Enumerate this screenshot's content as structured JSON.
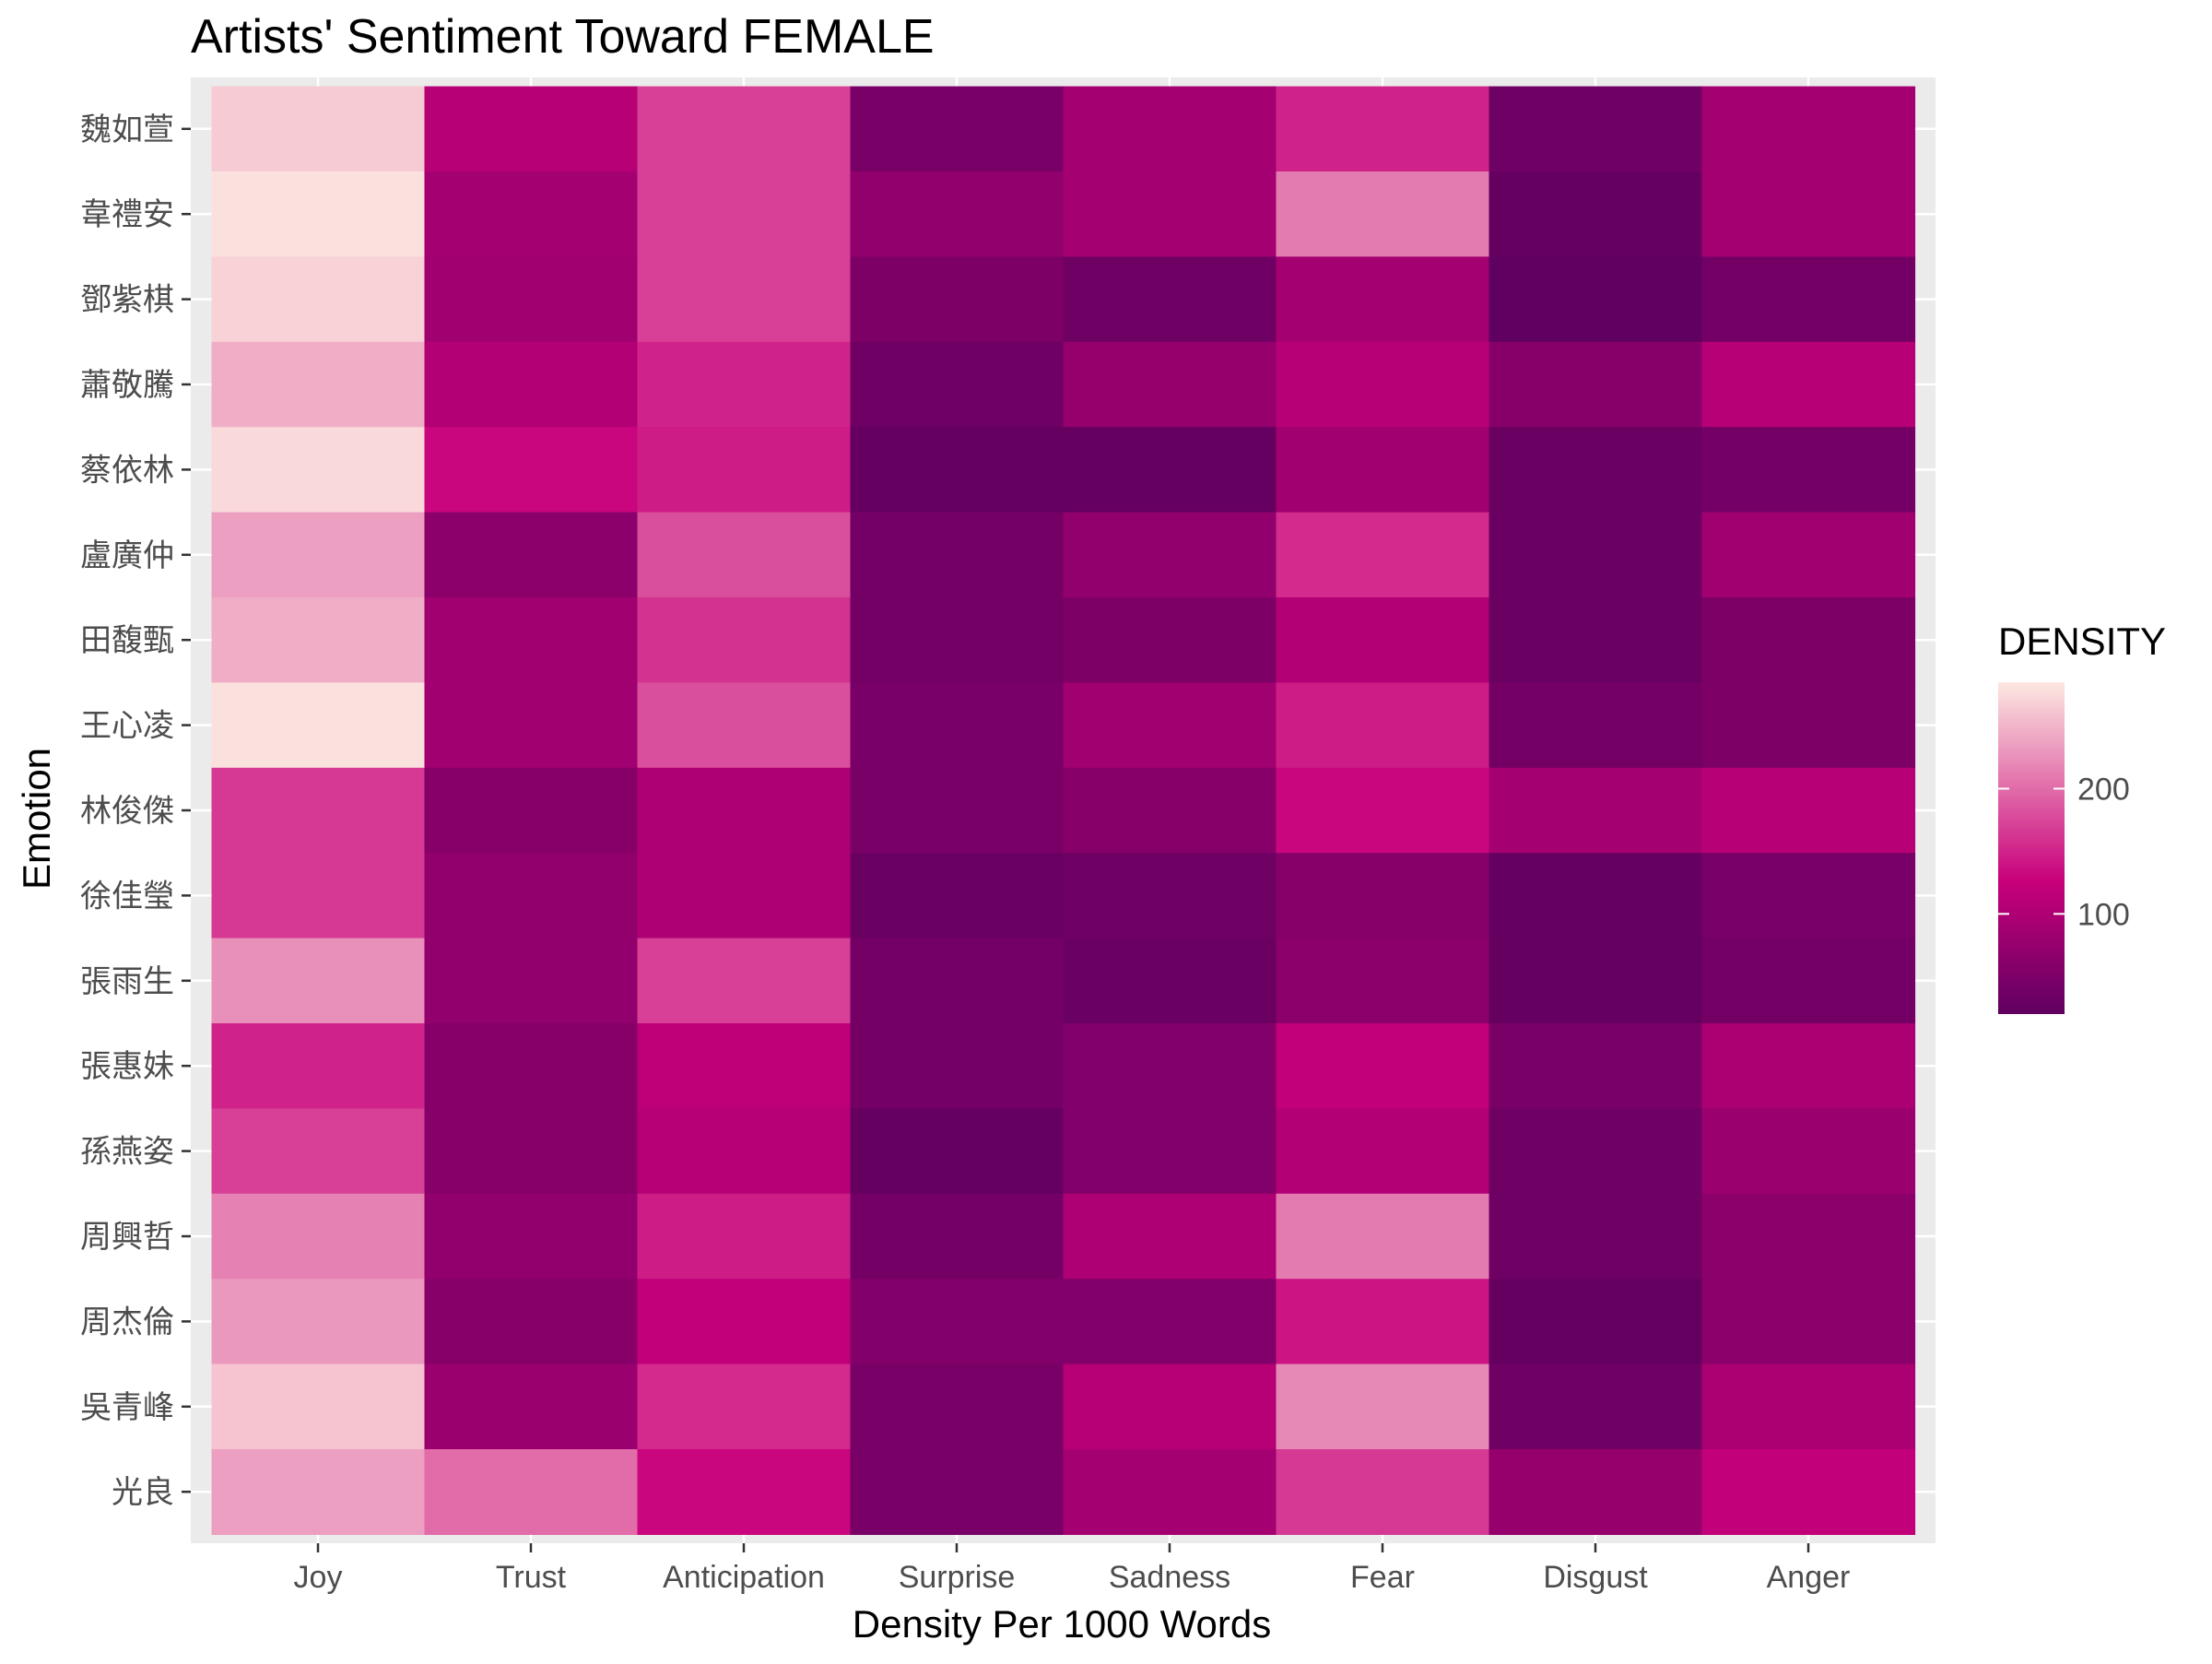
{
  "chart_data": {
    "type": "heatmap",
    "title": "Artists' Sentiment Toward FEMALE",
    "xlabel": "Density Per 1000 Words",
    "ylabel": "Emotion",
    "x_categories": [
      "Joy",
      "Trust",
      "Anticipation",
      "Surprise",
      "Sadness",
      "Fear",
      "Disgust",
      "Anger"
    ],
    "y_categories": [
      "魏如萱",
      "韋禮安",
      "鄧紫棋",
      "蕭敬騰",
      "蔡依林",
      "盧廣仲",
      "田馥甄",
      "王心凌",
      "林俊傑",
      "徐佳瑩",
      "張雨生",
      "張惠妹",
      "孫燕姿",
      "周興哲",
      "周杰倫",
      "吳青峰",
      "光良"
    ],
    "values": [
      [
        265,
        110,
        170,
        45,
        90,
        150,
        35,
        90
      ],
      [
        280,
        90,
        170,
        70,
        90,
        210,
        25,
        90
      ],
      [
        270,
        85,
        170,
        50,
        35,
        90,
        20,
        40
      ],
      [
        245,
        105,
        150,
        35,
        75,
        110,
        60,
        110
      ],
      [
        275,
        130,
        145,
        25,
        25,
        85,
        30,
        40
      ],
      [
        235,
        65,
        180,
        40,
        70,
        155,
        30,
        85
      ],
      [
        245,
        85,
        160,
        40,
        50,
        105,
        30,
        50
      ],
      [
        280,
        85,
        180,
        45,
        85,
        145,
        40,
        50
      ],
      [
        165,
        60,
        100,
        45,
        60,
        130,
        90,
        110
      ],
      [
        165,
        70,
        100,
        30,
        35,
        60,
        25,
        45
      ],
      [
        225,
        70,
        170,
        40,
        30,
        65,
        25,
        40
      ],
      [
        150,
        60,
        115,
        40,
        55,
        120,
        45,
        95
      ],
      [
        170,
        60,
        110,
        25,
        55,
        105,
        35,
        80
      ],
      [
        215,
        70,
        145,
        40,
        100,
        210,
        35,
        65
      ],
      [
        230,
        60,
        120,
        55,
        55,
        140,
        25,
        65
      ],
      [
        260,
        80,
        155,
        45,
        110,
        220,
        35,
        95
      ],
      [
        235,
        200,
        130,
        45,
        90,
        165,
        75,
        120
      ]
    ],
    "color_scale": {
      "low": "#600060",
      "mid": "#c8007a",
      "high": "#fde8e0",
      "domain": [
        20,
        285
      ]
    },
    "legend": {
      "title": "DENSITY",
      "ticks": [
        100,
        200
      ],
      "placement": "right"
    },
    "panel_background": "#ebebeb",
    "grid": true
  }
}
